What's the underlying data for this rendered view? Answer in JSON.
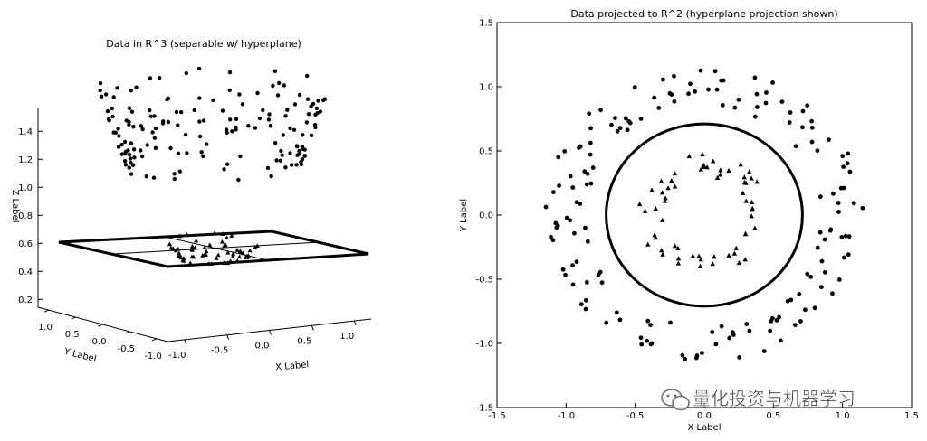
{
  "chart_data": [
    {
      "type": "scatter",
      "projection": "3d",
      "title": "Data in R^3 (separable w/ hyperplane)",
      "xlabel": "X Label",
      "ylabel": "Y Label",
      "zlabel": "Z Label",
      "xlim": [
        -1.2,
        1.2
      ],
      "ylim": [
        -1.2,
        1.2
      ],
      "zlim": [
        0.1,
        1.5
      ],
      "x_ticks": [
        "-1.0",
        "-0.5",
        "0.0",
        "0.5",
        "1.0"
      ],
      "y_ticks": [
        "1.0",
        "0.5",
        "0.0",
        "-0.5",
        "-1.0"
      ],
      "z_ticks": [
        "0.2",
        "0.4",
        "0.6",
        "0.8",
        "1.0",
        "1.2",
        "1.4"
      ],
      "hyperplane": {
        "z": 0.5,
        "x_range": [
          -1.2,
          1.2
        ],
        "y_range": [
          -1.2,
          1.2
        ]
      },
      "grid": false,
      "series": [
        {
          "marker": "circle",
          "z_distribution": "x^2 + y^2"
        },
        {
          "marker": "triangle",
          "z_distribution": "x^2 + y^2"
        }
      ]
    },
    {
      "type": "scatter",
      "title": "Data projected to R^2 (hyperplane projection shown)",
      "xlabel": "X Label",
      "ylabel": "Y Label",
      "xlim": [
        -1.5,
        1.5
      ],
      "ylim": [
        -1.5,
        1.5
      ],
      "x_ticks": [
        "-1.5",
        "-1.0",
        "-0.5",
        "0.0",
        "0.5",
        "1.0",
        "1.5"
      ],
      "y_ticks": [
        "1.5",
        "1.0",
        "0.5",
        "0.0",
        "-0.5",
        "-1.0",
        "-1.5"
      ],
      "decision_boundary": {
        "shape": "circle",
        "radius": 0.71,
        "center": [
          0,
          0
        ]
      },
      "grid": false,
      "series": [
        {
          "marker": "circle",
          "radius_range": [
            0.85,
            1.15
          ],
          "count": 160
        },
        {
          "marker": "triangle",
          "radius_range": [
            0.3,
            0.48
          ],
          "count": 60
        }
      ]
    }
  ],
  "watermark": {
    "text": "量化投资与机器学习",
    "icon": "wechat-icon"
  }
}
